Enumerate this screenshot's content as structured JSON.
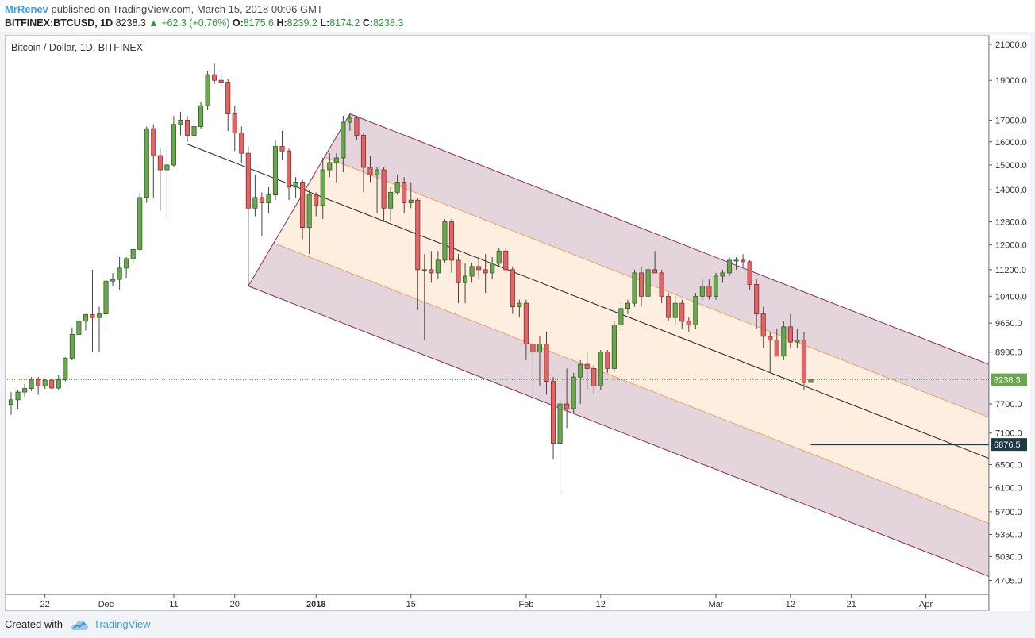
{
  "header": {
    "author": "MrRenev",
    "published": "published on TradingView.com, March 15, 2018 00:06 GMT",
    "symbol": "BITFINEX:BTCUSD, 1D",
    "last": "8238.3",
    "change": "+62.3 (+0.76%)",
    "o_label": "O:",
    "o": "8175.6",
    "h_label": "H:",
    "h": "8239.2",
    "l_label": "L:",
    "l": "8174.2",
    "c_label": "C:",
    "c": "8238.3"
  },
  "footer": {
    "created_with": "Created with",
    "brand": "TradingView"
  },
  "colors": {
    "up": "#6aa84f",
    "up_border": "#2f5f23",
    "down": "#e06666",
    "down_border": "#8a2a2a",
    "outer_band": "#e1cfd8",
    "inner_band": "#fdeee0",
    "band_edge": "#8b2d5a",
    "inner_edge": "#f0a070",
    "last_price_bg": "#6aa84f",
    "level_bg": "#1f3a47"
  },
  "chart_data": {
    "type": "candlestick",
    "title": "Bitcoin / Dollar, 1D, BITFINEX",
    "y_scale": "log",
    "ylim": [
      4700,
      21000
    ],
    "y_ticks": [
      "21000.0",
      "19000.0",
      "17000.0",
      "16000.0",
      "15000.0",
      "14000.0",
      "12800.0",
      "12000.0",
      "11200.0",
      "10400.0",
      "9650.0",
      "8900.0",
      "7700.0",
      "7100.0",
      "6500.0",
      "6100.0",
      "5700.0",
      "5350.0",
      "5030.0",
      "4705.0"
    ],
    "x_range": [
      "2017-11-17",
      "2018-04-11"
    ],
    "x_ticks": [
      {
        "date": "2017-11-22",
        "label": "22",
        "bold": false
      },
      {
        "date": "2017-12-01",
        "label": "Dec",
        "bold": false
      },
      {
        "date": "2017-12-11",
        "label": "11",
        "bold": false
      },
      {
        "date": "2017-12-20",
        "label": "20",
        "bold": false
      },
      {
        "date": "2018-01-01",
        "label": "2018",
        "bold": true
      },
      {
        "date": "2018-01-15",
        "label": "15",
        "bold": false
      },
      {
        "date": "2018-02-01",
        "label": "Feb",
        "bold": false
      },
      {
        "date": "2018-02-12",
        "label": "12",
        "bold": false
      },
      {
        "date": "2018-03-01",
        "label": "Mar",
        "bold": false
      },
      {
        "date": "2018-03-12",
        "label": "12",
        "bold": false
      },
      {
        "date": "2018-03-21",
        "label": "21",
        "bold": false
      },
      {
        "date": "2018-04-01",
        "label": "Apr",
        "bold": false
      }
    ],
    "last_price": 8238.3,
    "last_price_label": "8238.3",
    "level_price": 6876.5,
    "level_label": "6876.5",
    "level_start": "2018-03-15",
    "pitchfork": {
      "pivot_a": {
        "date": "2017-12-22",
        "price": 10700
      },
      "pivot_b": {
        "date": "2018-01-06",
        "price": 17300
      },
      "median_start": {
        "date": "2017-12-13",
        "price": 15900
      },
      "median_end": {
        "date": "2018-04-11",
        "price": 6580
      },
      "inner_offset_factor": 0.5
    },
    "ohlc": [
      [
        "2017-11-17",
        7690,
        7960,
        7470,
        7790
      ],
      [
        "2017-11-18",
        7790,
        8000,
        7600,
        7960
      ],
      [
        "2017-11-19",
        7960,
        8140,
        7860,
        8040
      ],
      [
        "2017-11-20",
        8040,
        8300,
        7980,
        8240
      ],
      [
        "2017-11-21",
        8240,
        8300,
        7900,
        8100
      ],
      [
        "2017-11-22",
        8100,
        8250,
        8030,
        8230
      ],
      [
        "2017-11-23",
        8230,
        8270,
        8000,
        8050
      ],
      [
        "2017-11-24",
        8050,
        8350,
        8000,
        8240
      ],
      [
        "2017-11-25",
        8240,
        8770,
        8200,
        8750
      ],
      [
        "2017-11-26",
        8750,
        9530,
        8700,
        9350
      ],
      [
        "2017-11-27",
        9350,
        9730,
        9300,
        9700
      ],
      [
        "2017-11-28",
        9700,
        9900,
        9450,
        9880
      ],
      [
        "2017-11-29",
        9880,
        11200,
        8900,
        9800
      ],
      [
        "2017-11-30",
        9800,
        10100,
        8900,
        9900
      ],
      [
        "2017-12-01",
        9900,
        10950,
        9500,
        10850
      ],
      [
        "2017-12-02",
        10850,
        11100,
        10700,
        10900
      ],
      [
        "2017-12-03",
        10900,
        11600,
        10600,
        11250
      ],
      [
        "2017-12-04",
        11250,
        11600,
        10950,
        11550
      ],
      [
        "2017-12-05",
        11550,
        11900,
        11400,
        11850
      ],
      [
        "2017-12-06",
        11850,
        13900,
        11800,
        13700
      ],
      [
        "2017-12-07",
        13700,
        16700,
        13500,
        16600
      ],
      [
        "2017-12-08",
        16600,
        16800,
        13700,
        15400
      ],
      [
        "2017-12-09",
        15400,
        15700,
        13200,
        14800
      ],
      [
        "2017-12-10",
        14800,
        15800,
        13000,
        15000
      ],
      [
        "2017-12-11",
        15000,
        17200,
        14900,
        16800
      ],
      [
        "2017-12-12",
        16800,
        17400,
        16300,
        17000
      ],
      [
        "2017-12-13",
        17000,
        17200,
        16000,
        16300
      ],
      [
        "2017-12-14",
        16300,
        17000,
        16100,
        16700
      ],
      [
        "2017-12-15",
        16700,
        17900,
        16600,
        17700
      ],
      [
        "2017-12-16",
        17700,
        19500,
        17500,
        19300
      ],
      [
        "2017-12-17",
        19300,
        19900,
        18800,
        19000
      ],
      [
        "2017-12-18",
        19000,
        19400,
        18600,
        18900
      ],
      [
        "2017-12-19",
        18900,
        19050,
        16500,
        17300
      ],
      [
        "2017-12-20",
        17300,
        17700,
        15600,
        16400
      ],
      [
        "2017-12-21",
        16400,
        16700,
        15100,
        15500
      ],
      [
        "2017-12-22",
        15500,
        15800,
        10700,
        13300
      ],
      [
        "2017-12-23",
        13300,
        14600,
        13000,
        13700
      ],
      [
        "2017-12-24",
        13700,
        13900,
        12300,
        13500
      ],
      [
        "2017-12-25",
        13500,
        14100,
        13100,
        13800
      ],
      [
        "2017-12-26",
        13800,
        16100,
        13600,
        15800
      ],
      [
        "2017-12-27",
        15800,
        16500,
        15200,
        15600
      ],
      [
        "2017-12-28",
        15600,
        15700,
        13600,
        14100
      ],
      [
        "2017-12-29",
        14100,
        14500,
        13700,
        14300
      ],
      [
        "2017-12-30",
        14300,
        14400,
        12200,
        12600
      ],
      [
        "2017-12-31",
        12600,
        14000,
        11700,
        13800
      ],
      [
        "2018-01-01",
        13800,
        13900,
        13000,
        13400
      ],
      [
        "2018-01-02",
        13400,
        15300,
        12900,
        14800
      ],
      [
        "2018-01-03",
        14800,
        15500,
        14500,
        15100
      ],
      [
        "2018-01-04",
        15100,
        15500,
        14300,
        15300
      ],
      [
        "2018-01-05",
        15300,
        17200,
        14700,
        16900
      ],
      [
        "2018-01-06",
        16900,
        17300,
        16500,
        17100
      ],
      [
        "2018-01-07",
        17100,
        17200,
        16100,
        16300
      ],
      [
        "2018-01-08",
        16300,
        16400,
        13900,
        14900
      ],
      [
        "2018-01-09",
        14900,
        15400,
        14300,
        14600
      ],
      [
        "2018-01-10",
        14600,
        14900,
        13100,
        14800
      ],
      [
        "2018-01-11",
        14800,
        14900,
        12800,
        13300
      ],
      [
        "2018-01-12",
        13300,
        14100,
        12800,
        13900
      ],
      [
        "2018-01-13",
        13900,
        14600,
        13800,
        14300
      ],
      [
        "2018-01-14",
        14300,
        14500,
        13100,
        13500
      ],
      [
        "2018-01-15",
        13500,
        14300,
        13300,
        13600
      ],
      [
        "2018-01-16",
        13600,
        13700,
        10000,
        11200
      ],
      [
        "2018-01-17",
        11200,
        11700,
        9200,
        11200
      ],
      [
        "2018-01-18",
        11200,
        11800,
        10800,
        11100
      ],
      [
        "2018-01-19",
        11100,
        11800,
        10900,
        11500
      ],
      [
        "2018-01-20",
        11500,
        12900,
        11400,
        12800
      ],
      [
        "2018-01-21",
        12800,
        12900,
        11100,
        11500
      ],
      [
        "2018-01-22",
        11500,
        11700,
        10200,
        10800
      ],
      [
        "2018-01-23",
        10800,
        11400,
        10200,
        11000
      ],
      [
        "2018-01-24",
        11000,
        11400,
        10800,
        11300
      ],
      [
        "2018-01-25",
        11300,
        11600,
        10900,
        11200
      ],
      [
        "2018-01-26",
        11200,
        11700,
        10500,
        11100
      ],
      [
        "2018-01-27",
        11100,
        11600,
        10900,
        11400
      ],
      [
        "2018-01-28",
        11400,
        11900,
        11300,
        11800
      ],
      [
        "2018-01-29",
        11800,
        11900,
        11100,
        11200
      ],
      [
        "2018-01-30",
        11200,
        11300,
        9900,
        10100
      ],
      [
        "2018-01-31",
        10100,
        10300,
        9800,
        10200
      ],
      [
        "2018-02-01",
        10200,
        10300,
        8700,
        9100
      ],
      [
        "2018-02-02",
        9100,
        9200,
        7800,
        8900
      ],
      [
        "2018-02-03",
        8900,
        9300,
        8100,
        9100
      ],
      [
        "2018-02-04",
        9100,
        9400,
        7900,
        8200
      ],
      [
        "2018-02-05",
        8200,
        8300,
        6600,
        6900
      ],
      [
        "2018-02-06",
        6900,
        7800,
        6000,
        7700
      ],
      [
        "2018-02-07",
        7700,
        8500,
        7200,
        7600
      ],
      [
        "2018-02-08",
        7600,
        8400,
        7500,
        8300
      ],
      [
        "2018-02-09",
        8300,
        8700,
        7700,
        8600
      ],
      [
        "2018-02-10",
        8600,
        8900,
        8000,
        8500
      ],
      [
        "2018-02-11",
        8500,
        8600,
        7900,
        8100
      ],
      [
        "2018-02-12",
        8100,
        8950,
        8000,
        8900
      ],
      [
        "2018-02-13",
        8900,
        8950,
        8400,
        8500
      ],
      [
        "2018-02-14",
        8500,
        9700,
        8450,
        9600
      ],
      [
        "2018-02-15",
        9600,
        10300,
        9400,
        10050
      ],
      [
        "2018-02-16",
        10050,
        10300,
        9900,
        10200
      ],
      [
        "2018-02-17",
        10200,
        11200,
        10100,
        11100
      ],
      [
        "2018-02-18",
        11100,
        11300,
        10100,
        10400
      ],
      [
        "2018-02-19",
        10400,
        11300,
        10300,
        11200
      ],
      [
        "2018-02-20",
        11200,
        11800,
        11100,
        11100
      ],
      [
        "2018-02-21",
        11100,
        11200,
        10200,
        10400
      ],
      [
        "2018-02-22",
        10400,
        10500,
        9700,
        9800
      ],
      [
        "2018-02-23",
        9800,
        10400,
        9600,
        10200
      ],
      [
        "2018-02-24",
        10200,
        10300,
        9500,
        9700
      ],
      [
        "2018-02-25",
        9700,
        9800,
        9400,
        9600
      ],
      [
        "2018-02-26",
        9600,
        10500,
        9500,
        10400
      ],
      [
        "2018-02-27",
        10400,
        10900,
        10300,
        10700
      ],
      [
        "2018-02-28",
        10700,
        10900,
        10300,
        10400
      ],
      [
        "2018-03-01",
        10400,
        11100,
        10300,
        11000
      ],
      [
        "2018-03-02",
        11000,
        11200,
        10800,
        11100
      ],
      [
        "2018-03-03",
        11100,
        11600,
        11000,
        11500
      ],
      [
        "2018-03-04",
        11500,
        11600,
        11200,
        11500
      ],
      [
        "2018-03-05",
        11500,
        11700,
        11300,
        11450
      ],
      [
        "2018-03-06",
        11450,
        11500,
        10600,
        10750
      ],
      [
        "2018-03-07",
        10750,
        10900,
        9500,
        9900
      ],
      [
        "2018-03-08",
        9900,
        10100,
        9000,
        9300
      ],
      [
        "2018-03-09",
        9300,
        9400,
        8400,
        9200
      ],
      [
        "2018-03-10",
        9200,
        9500,
        8800,
        8800
      ],
      [
        "2018-03-11",
        8800,
        9700,
        8700,
        9550
      ],
      [
        "2018-03-12",
        9550,
        9900,
        9000,
        9150
      ],
      [
        "2018-03-13",
        9150,
        9500,
        9000,
        9200
      ],
      [
        "2018-03-14",
        9200,
        9400,
        8000,
        8176
      ],
      [
        "2018-03-15",
        8175.6,
        8239.2,
        8174.2,
        8238.3
      ]
    ]
  }
}
